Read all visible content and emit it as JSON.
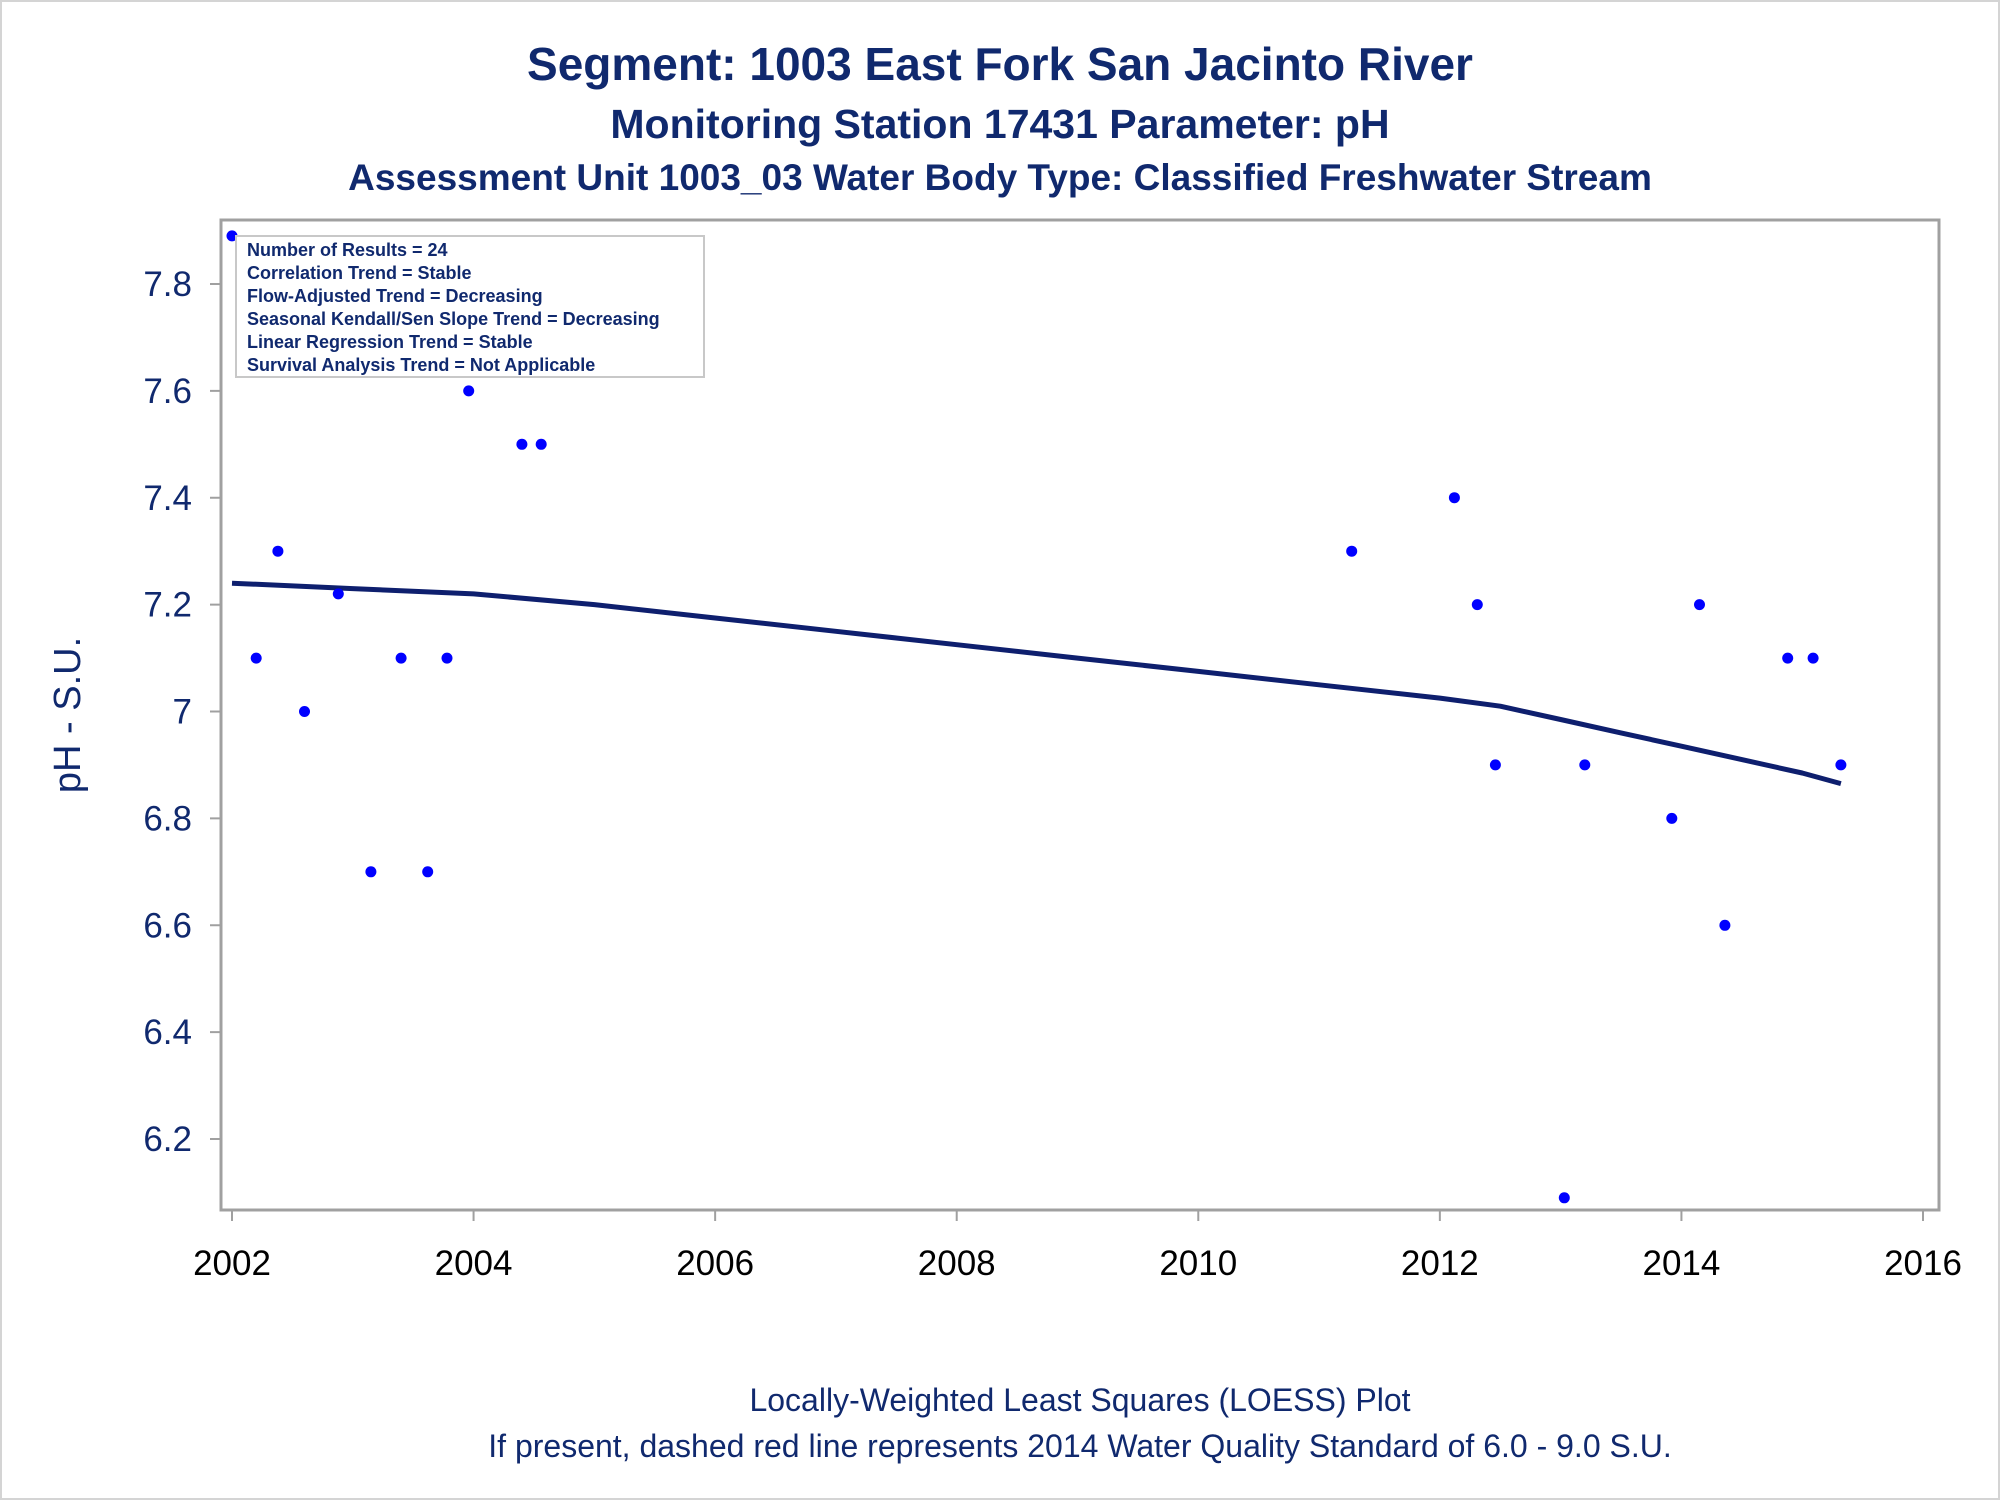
{
  "chart_data": {
    "type": "scatter",
    "title": "Segment: 1003  East Fork San Jacinto River",
    "subtitle": "Monitoring Station 17431 Parameter: pH",
    "subtitle2": "Assessment Unit 1003_03   Water Body Type: Classified Freshwater Stream",
    "xlabel": "",
    "ylabel": "pH - S.U.",
    "xlim": [
      2002,
      2016
    ],
    "ylim": [
      6.09,
      7.92
    ],
    "xticks": [
      2002,
      2004,
      2006,
      2008,
      2010,
      2012,
      2014,
      2016
    ],
    "xtick_labels": [
      "2002",
      "2004",
      "2006",
      "2008",
      "2010",
      "2012",
      "2014",
      "2016"
    ],
    "yticks": [
      6.2,
      6.4,
      6.6,
      6.8,
      7.0,
      7.2,
      7.4,
      7.6,
      7.8
    ],
    "ytick_labels": [
      "6.2",
      "6.4",
      "6.6",
      "6.8",
      "7",
      "7.2",
      "7.4",
      "7.6",
      "7.8"
    ],
    "grid": false,
    "legend": "none",
    "colors": {
      "points": "#0000ff",
      "loess": "#0e1f6e",
      "text": "#10296e",
      "axis": "#a0a0a0"
    },
    "series": [
      {
        "type": "scatter",
        "points": [
          {
            "x": 2002.0,
            "y": 7.89
          },
          {
            "x": 2002.2,
            "y": 7.1
          },
          {
            "x": 2002.38,
            "y": 7.3
          },
          {
            "x": 2002.6,
            "y": 7.0
          },
          {
            "x": 2002.88,
            "y": 7.22
          },
          {
            "x": 2003.15,
            "y": 6.7
          },
          {
            "x": 2003.4,
            "y": 7.1
          },
          {
            "x": 2003.62,
            "y": 6.7
          },
          {
            "x": 2003.78,
            "y": 7.1
          },
          {
            "x": 2003.96,
            "y": 7.6
          },
          {
            "x": 2004.4,
            "y": 7.5
          },
          {
            "x": 2004.56,
            "y": 7.5
          },
          {
            "x": 2011.27,
            "y": 7.3
          },
          {
            "x": 2012.12,
            "y": 7.4
          },
          {
            "x": 2012.31,
            "y": 7.2
          },
          {
            "x": 2012.46,
            "y": 6.9
          },
          {
            "x": 2013.03,
            "y": 6.09
          },
          {
            "x": 2013.2,
            "y": 6.9
          },
          {
            "x": 2013.92,
            "y": 6.8
          },
          {
            "x": 2014.15,
            "y": 7.2
          },
          {
            "x": 2014.36,
            "y": 6.6
          },
          {
            "x": 2014.88,
            "y": 7.1
          },
          {
            "x": 2015.09,
            "y": 7.1
          },
          {
            "x": 2015.32,
            "y": 6.9
          }
        ]
      },
      {
        "type": "line",
        "points": [
          {
            "x": 2002.0,
            "y": 7.24
          },
          {
            "x": 2003.0,
            "y": 7.23
          },
          {
            "x": 2004.0,
            "y": 7.22
          },
          {
            "x": 2005.0,
            "y": 7.2
          },
          {
            "x": 2006.0,
            "y": 7.175
          },
          {
            "x": 2007.0,
            "y": 7.15
          },
          {
            "x": 2008.0,
            "y": 7.125
          },
          {
            "x": 2009.0,
            "y": 7.1
          },
          {
            "x": 2010.0,
            "y": 7.075
          },
          {
            "x": 2011.0,
            "y": 7.05
          },
          {
            "x": 2012.0,
            "y": 7.025
          },
          {
            "x": 2012.5,
            "y": 7.01
          },
          {
            "x": 2013.0,
            "y": 6.985
          },
          {
            "x": 2013.5,
            "y": 6.96
          },
          {
            "x": 2014.0,
            "y": 6.935
          },
          {
            "x": 2014.5,
            "y": 6.91
          },
          {
            "x": 2015.0,
            "y": 6.885
          },
          {
            "x": 2015.32,
            "y": 6.865
          }
        ]
      }
    ],
    "info_box": [
      "Number of Results = 24",
      "Correlation Trend = Stable",
      "Flow-Adjusted Trend = Decreasing",
      "Seasonal Kendall/Sen Slope Trend = Decreasing",
      "Linear Regression Trend = Stable",
      "Survival Analysis Trend = Not Applicable"
    ],
    "footnotes": [
      "Locally-Weighted Least Squares (LOESS) Plot",
      "If present, dashed red line represents 2014 Water Quality Standard of 6.0 - 9.0 S.U."
    ]
  }
}
